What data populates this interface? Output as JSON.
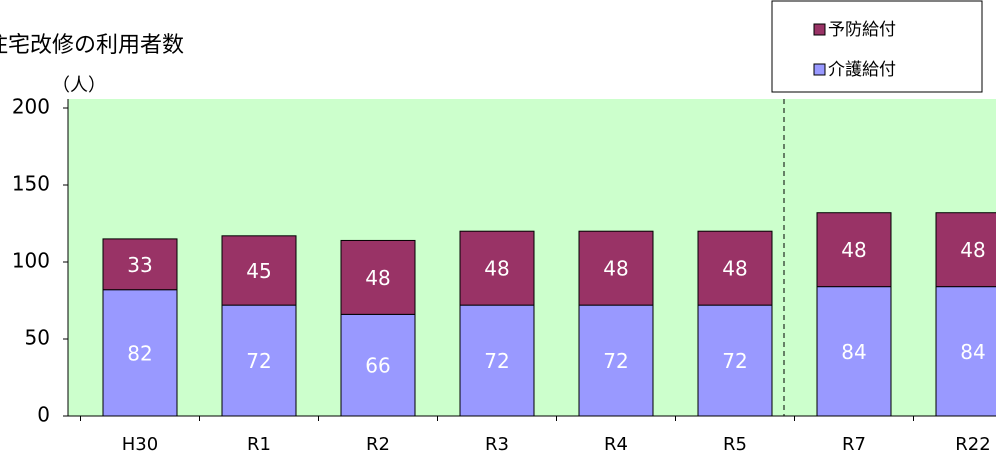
{
  "chart_data": {
    "type": "bar",
    "stacked": true,
    "title": "住宅改修の利用者数",
    "y_label": "（人）",
    "categories": [
      "H30",
      "R1",
      "R2",
      "R3",
      "R4",
      "R5",
      "R7",
      "R22"
    ],
    "series": [
      {
        "name": "介護給付",
        "color": "#9999ff",
        "values": [
          82,
          72,
          66,
          72,
          72,
          72,
          84,
          84
        ]
      },
      {
        "name": "予防給付",
        "color": "#993366",
        "values": [
          33,
          45,
          48,
          48,
          48,
          48,
          48,
          48
        ]
      }
    ],
    "ylim": [
      0,
      200
    ],
    "yticks": [
      0,
      50,
      100,
      150,
      200
    ],
    "plot_background": "#ccffcc"
  }
}
